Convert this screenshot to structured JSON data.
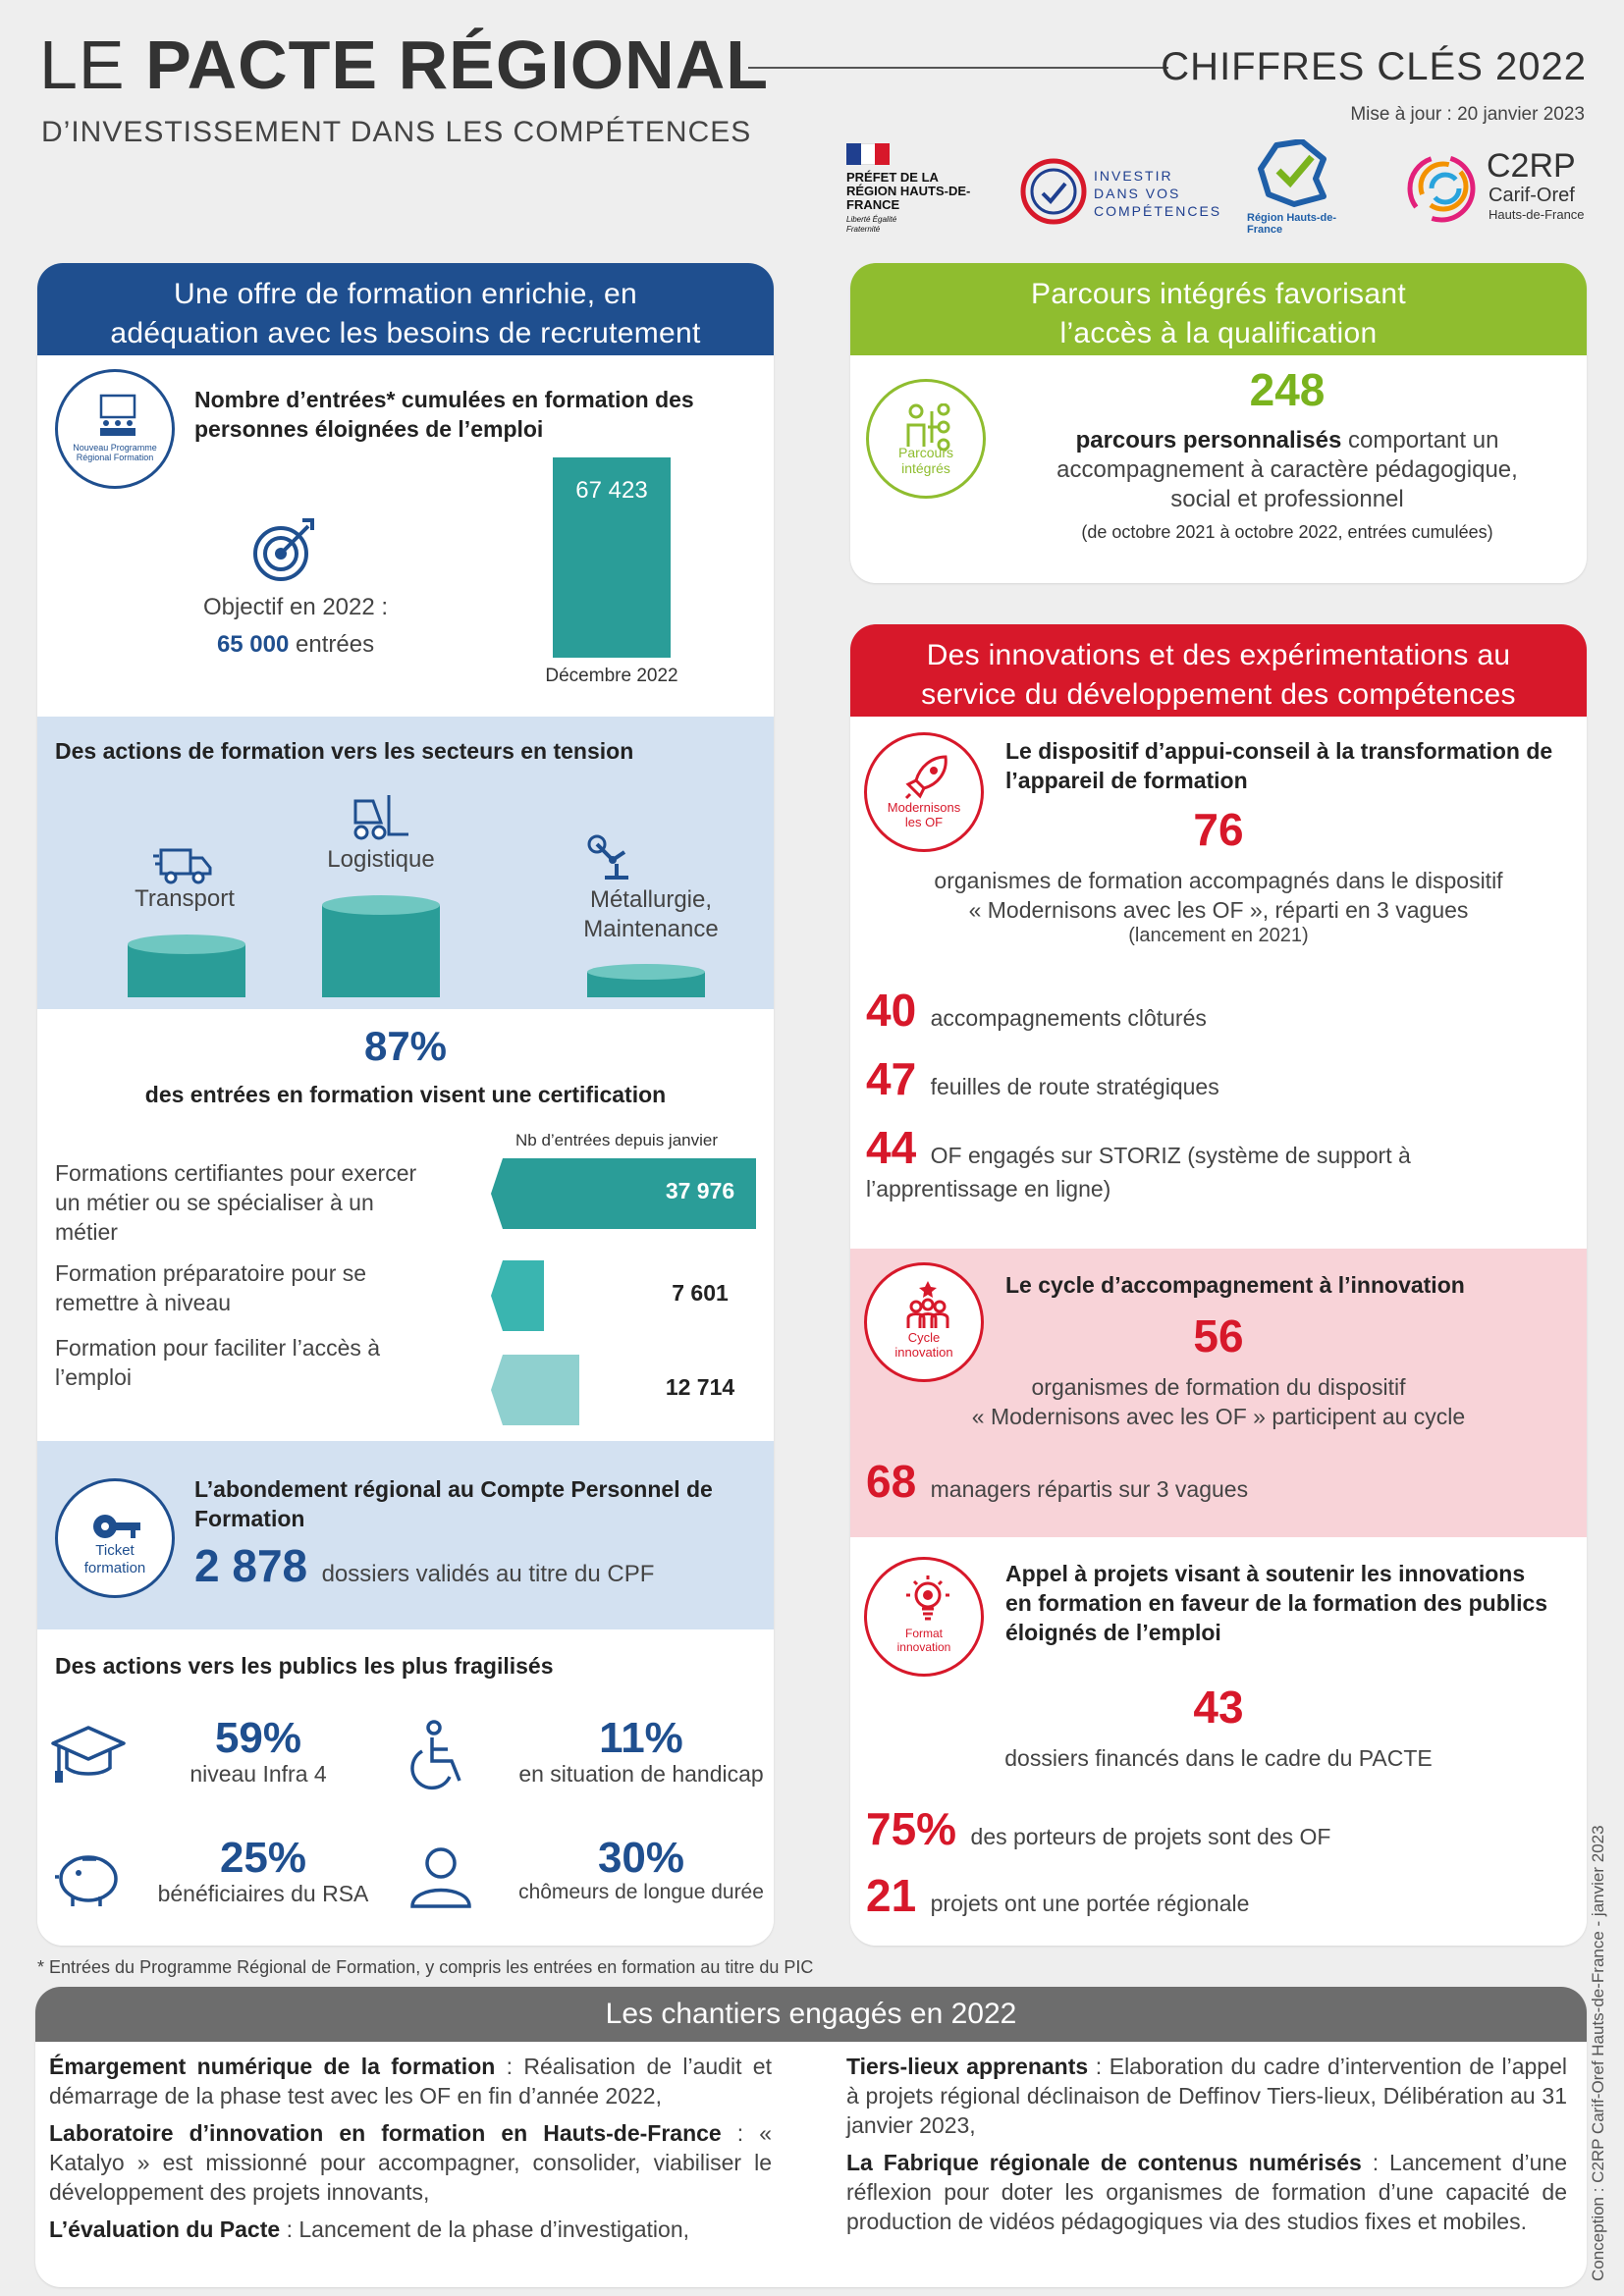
{
  "header": {
    "title_light": "LE ",
    "title_bold": "PACTE RÉGIONAL",
    "subtitle": "D’INVESTISSEMENT DANS LES COMPÉTENCES",
    "key_figures": "CHIFFRES CLÉS 2022",
    "updated": "Mise à jour : 20 janvier 2023",
    "logos": {
      "prefet": "PRÉFET DE LA RÉGION HAUTS-DE-FRANCE",
      "prefet_motto": "Liberté Égalité Fraternité",
      "invest": "INVESTIR DANS VOS COMPÉTENCES",
      "region": "Région Hauts-de-France",
      "c2rp": "C2RP",
      "c2rp_sub": "Carif-Oref",
      "c2rp_sub2": "Hauts-de-France"
    }
  },
  "offer": {
    "heading_l1": "Une offre de formation enrichie, en",
    "heading_l2": "adéquation avec les besoins de recrutement",
    "badge": "Nouveau Programme Régional Formation",
    "entries_title_l1": "Nombre d’entrées* cumulées en formation des",
    "entries_title_l2": "personnes éloignées de l’emploi",
    "entries_value": "67 423",
    "entries_period": "Décembre 2022",
    "objective_label": "Objectif en 2022 :",
    "objective_value": "65 000",
    "objective_unit": " entrées",
    "sectors_title": "Des actions de formation vers les secteurs en tension",
    "sectors": [
      "Transport",
      "Logistique",
      "Métallurgie,",
      "Maintenance"
    ],
    "cert_pct": "87%",
    "cert_text": "des entrées en formation visent une certification",
    "cert_col": "Nb d’entrées depuis janvier",
    "cert_rows": [
      {
        "label_l1": "Formations certifiantes pour exercer",
        "label_l2": "un métier ou se spécialiser à un",
        "label_l3": "métier",
        "value": "37 976",
        "fraction": 1.0
      },
      {
        "label_l1": "Formation préparatoire pour se",
        "label_l2": "remettre à niveau",
        "label_l3": "",
        "value": "7 601",
        "fraction": 0.2
      },
      {
        "label_l1": "Formation pour faciliter l’accès à",
        "label_l2": "l’emploi",
        "label_l3": "",
        "value": "12 714",
        "fraction": 0.335
      }
    ],
    "cpf_badge_l1": "Ticket",
    "cpf_badge_l2": "formation",
    "cpf_title_l1": "L’abondement régional au Compte Personnel de",
    "cpf_title_l2": "Formation",
    "cpf_value": "2 878",
    "cpf_text": "dossiers validés au titre du CPF",
    "publics_title": "Des actions vers les publics les plus fragilisés",
    "publics": [
      {
        "pct": "59%",
        "label": "niveau Infra 4"
      },
      {
        "pct": "11%",
        "label": "en situation de handicap"
      },
      {
        "pct": "25%",
        "label": "bénéficiaires du RSA"
      },
      {
        "pct": "30%",
        "label": "chômeurs de longue durée"
      }
    ]
  },
  "parcours": {
    "heading_l1": "Parcours intégrés favorisant",
    "heading_l2": "l’accès à la qualification",
    "badge_l1": "Parcours",
    "badge_l2": "intégrés",
    "value": "248",
    "text_bold": "parcours personnalisés",
    "text_rest": " comportant un",
    "text_l2": "accompagnement à caractère pédagogique,",
    "text_l3": "social et professionnel",
    "note": "(de octobre 2021 à octobre 2022, entrées cumulées)"
  },
  "innov": {
    "heading_l1": "Des innovations et des expérimentations au",
    "heading_l2": "service du développement des compétences",
    "of_badge_l1": "Modernisons",
    "of_badge_l2": "les OF",
    "of_title_l1": "Le dispositif d’appui-conseil à la transformation de",
    "of_title_l2": "l’appareil de formation",
    "of_value": "76",
    "of_text_l1": "organismes de formation accompagnés dans le dispositif",
    "of_text_l2": "« Modernisons avec les OF », réparti en 3 vagues",
    "of_text_l3": "(lancement en 2021)",
    "of_stats": [
      {
        "n": "40",
        "t": "accompagnements clôturés",
        "t2": ""
      },
      {
        "n": "47",
        "t": "feuilles de route stratégiques",
        "t2": ""
      },
      {
        "n": "44",
        "t": "OF engagés sur STORIZ (système de support à",
        "t2": "l’apprentissage en ligne)"
      }
    ],
    "cycle_badge_l1": "Cycle",
    "cycle_badge_l2": "innovation",
    "cycle_title": "Le cycle d’accompagnement à l’innovation",
    "cycle_value": "56",
    "cycle_text_l1": "organismes de formation du dispositif",
    "cycle_text_l2": "« Modernisons avec les OF » participent au cycle",
    "cycle_stat_n": "68",
    "cycle_stat_t": "managers répartis sur 3 vagues",
    "ap_badge_l1": "Format",
    "ap_badge_l2": "innovation",
    "ap_title_l1": "Appel à projets visant à soutenir les innovations",
    "ap_title_l2": "en formation en faveur de la formation des publics",
    "ap_title_l3": "éloignés de l’emploi",
    "ap_value": "43",
    "ap_text": "dossiers financés dans le cadre du PACTE",
    "ap_stats": [
      {
        "n": "75%",
        "t": "des porteurs de projets sont des OF"
      },
      {
        "n": "21",
        "t": "projets ont une portée régionale"
      }
    ]
  },
  "footnote": "* Entrées du Programme Régional de Formation, y compris les entrées en formation au titre du PIC",
  "chantiers": {
    "heading": "Les chantiers engagés en 2022",
    "left": [
      {
        "bold": "Émargement numérique de la formation",
        "text": " : Réalisation de l’audit et démarrage de la phase test avec les OF en fin d’année 2022,"
      },
      {
        "bold": "Laboratoire d’innovation en formation en Hauts-de-France",
        "text": " : « Katalyo » est missionné pour accompagner, consolider, viabiliser le développement des projets innovants,"
      },
      {
        "bold": "L’évaluation du Pacte",
        "text": " : Lancement de la phase d’investigation,"
      }
    ],
    "right": [
      {
        "bold": "Tiers-lieux apprenants",
        "text": " : Elaboration du cadre d’intervention de l’appel à projets régional déclinaison de Deffinov Tiers-lieux, Délibération au 31 janvier 2023,"
      },
      {
        "bold": "La Fabrique régionale de contenus numérisés",
        "text": " : Lancement d’une réflexion pour doter les organismes de formation d’une capacité de production de vidéos pédagogiques via des studios fixes et mobiles."
      }
    ]
  },
  "side_credit": "Conception : C2RP Carif-Oref Hauts-de-France - janvier 2023",
  "colors": {
    "navy": "#1f4f8f",
    "teal": "#2a9d98",
    "green": "#8fbd2f",
    "red": "#d7182a",
    "pink": "#f8d3d8",
    "lightblue": "#d3e1f1",
    "grey": "#6d6d6d"
  }
}
